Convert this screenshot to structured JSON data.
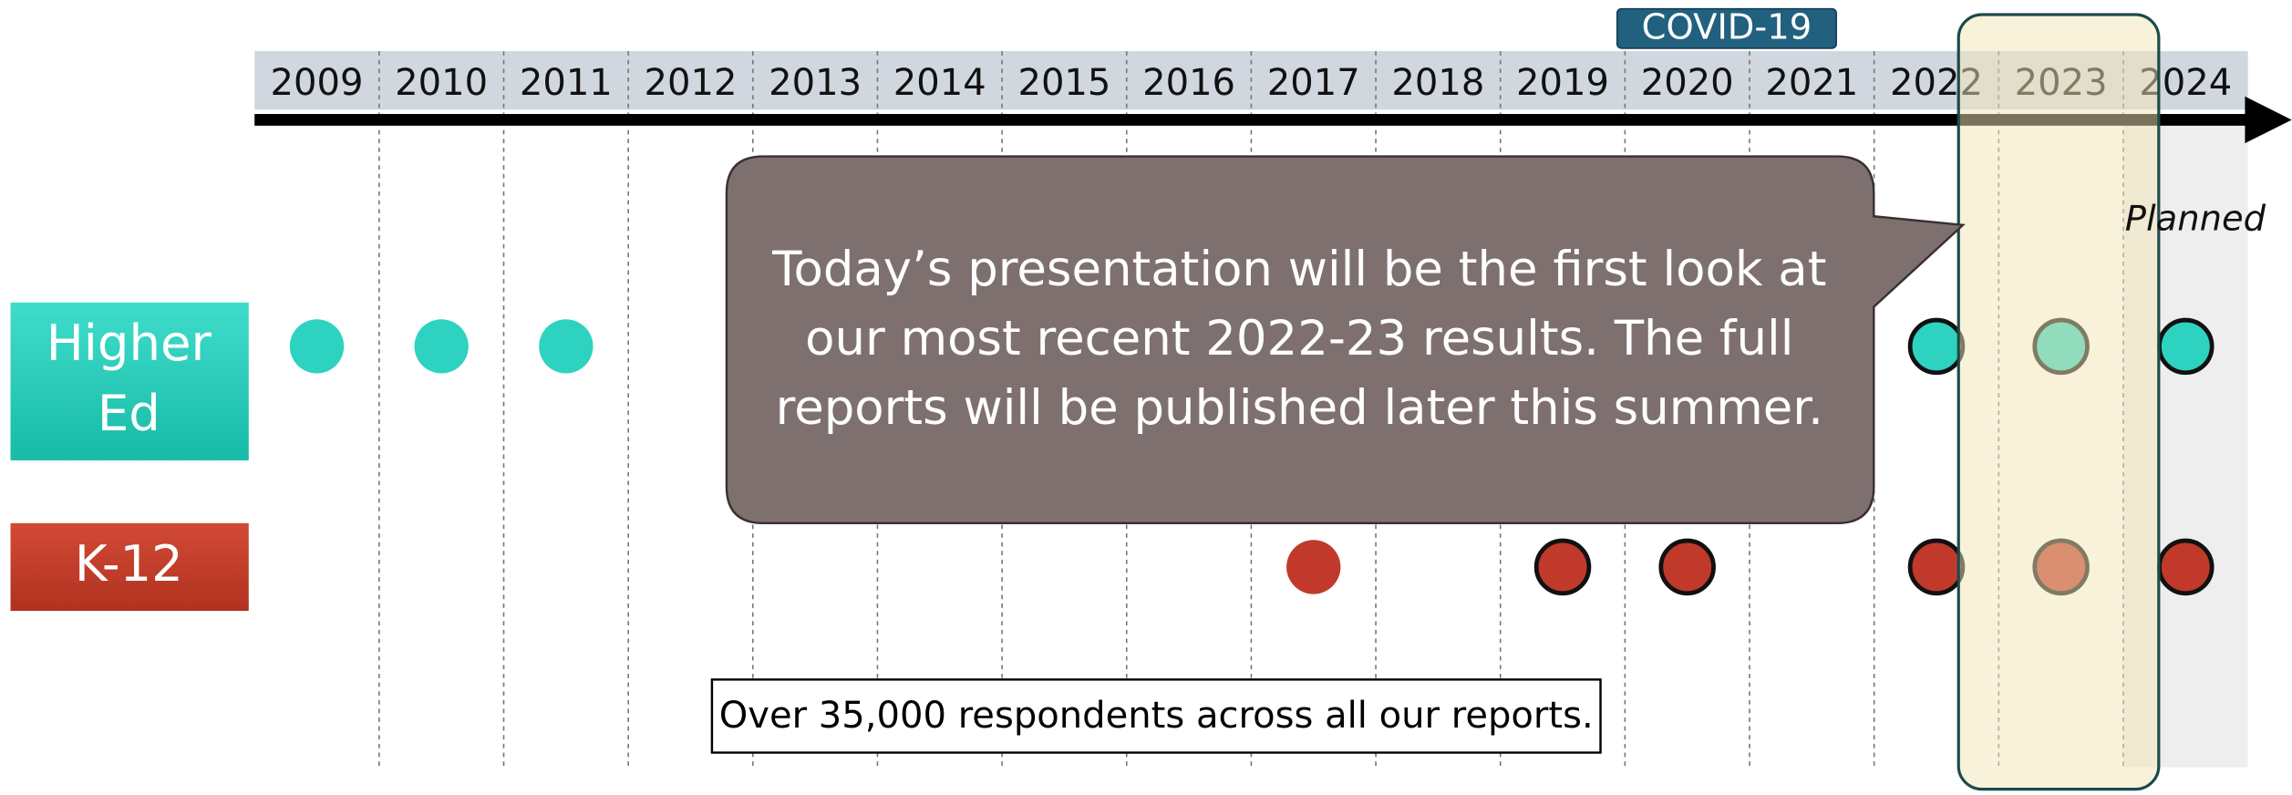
{
  "timeline": {
    "years": [
      "2009",
      "2010",
      "2011",
      "2012",
      "2013",
      "2014",
      "2015",
      "2016",
      "2017",
      "2018",
      "2019",
      "2020",
      "2021",
      "2022",
      "2023",
      "2024"
    ],
    "covid_label": "COVID-19",
    "planned_label": "Planned"
  },
  "rows": [
    {
      "label_lines": [
        "Higher",
        "Ed"
      ],
      "color": "#2dd3c0",
      "dots": [
        {
          "year": 2009,
          "outlined": false
        },
        {
          "year": 2010,
          "outlined": false
        },
        {
          "year": 2011,
          "outlined": false
        },
        {
          "year": 2022,
          "outlined": true
        },
        {
          "year": 2023,
          "outlined": true
        },
        {
          "year": 2024,
          "outlined": true
        }
      ]
    },
    {
      "label_lines": [
        "K-12"
      ],
      "color": "#c0392b",
      "dots": [
        {
          "year": 2017,
          "outlined": false
        },
        {
          "year": 2019,
          "outlined": true
        },
        {
          "year": 2020,
          "outlined": true
        },
        {
          "year": 2022,
          "outlined": true
        },
        {
          "year": 2023,
          "outlined": true
        },
        {
          "year": 2024,
          "outlined": true
        }
      ]
    }
  ],
  "callout": {
    "lines": [
      "Today’s presentation will be the first look at",
      "our most recent 2022-23 results. The full",
      "reports will be published later this summer."
    ]
  },
  "footnote": "Over 35,000 respondents across all our reports."
}
